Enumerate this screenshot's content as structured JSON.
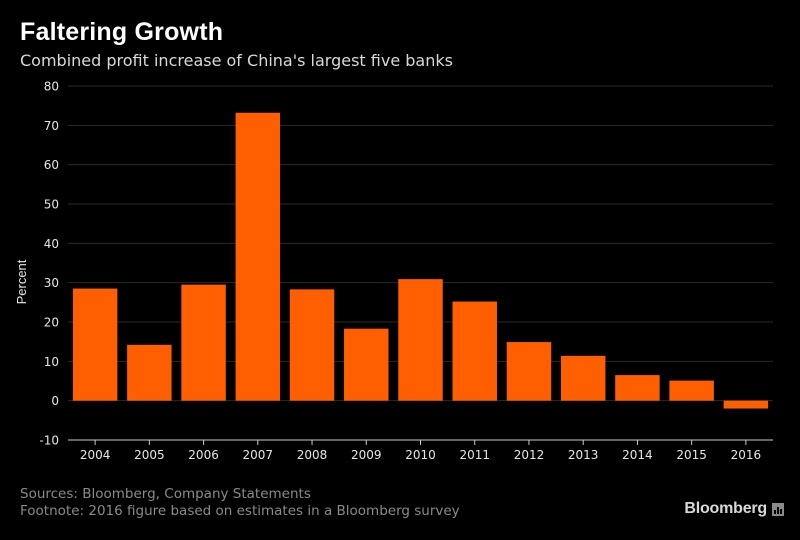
{
  "header": {
    "title": "Faltering Growth",
    "subtitle": "Combined profit increase of China's largest five banks"
  },
  "footer": {
    "sources": "Sources: Bloomberg, Company Statements",
    "footnote": "Footnote: 2016 figure based on estimates in a Bloomberg survey",
    "brand": "Bloomberg",
    "brand_icon": "bloomberg-chart-icon"
  },
  "colors": {
    "background": "#000000",
    "bar": "#ff5f00",
    "gridline": "#2a2a2a",
    "axis": "#cccccc",
    "tick_text": "#e6e6e6"
  },
  "chart_data": {
    "type": "bar",
    "title": "Faltering Growth",
    "subtitle": "Combined profit increase of China's largest five banks",
    "xlabel": "",
    "ylabel": "Percent",
    "categories": [
      "2004",
      "2005",
      "2006",
      "2007",
      "2008",
      "2009",
      "2010",
      "2011",
      "2012",
      "2013",
      "2014",
      "2015",
      "2016"
    ],
    "values": [
      28.5,
      14.2,
      29.5,
      73.2,
      28.3,
      18.3,
      30.9,
      25.2,
      14.9,
      11.4,
      6.5,
      5.1,
      -2.0
    ],
    "ylim": [
      -10,
      80
    ],
    "yticks": [
      -10,
      0,
      10,
      20,
      30,
      40,
      50,
      60,
      70,
      80
    ],
    "grid": true,
    "legend": "none"
  }
}
